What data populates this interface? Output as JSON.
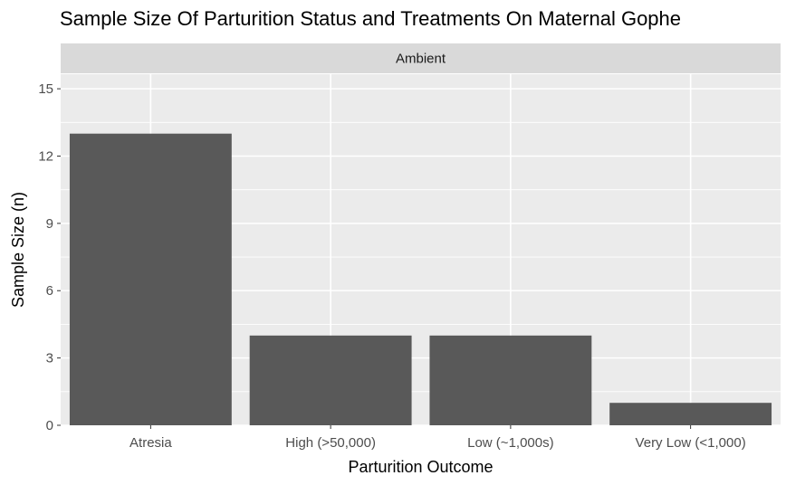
{
  "chart_data": {
    "type": "bar",
    "title": "Sample Size Of Parturition Status and Treatments On Maternal Gophe",
    "facet_label": "Ambient",
    "xlabel": "Parturition Outcome",
    "ylabel": "Sample Size (n)",
    "categories": [
      "Atresia",
      "High (>50,000)",
      "Low (~1,000s)",
      "Very Low (<1,000)"
    ],
    "values": [
      13,
      4,
      4,
      1
    ],
    "ylim": [
      0,
      15.65
    ],
    "yticks": [
      0,
      3,
      6,
      9,
      12,
      15
    ],
    "grid": true,
    "colors": {
      "bar": "#595959",
      "panel": "#ebebeb",
      "grid": "#ffffff",
      "strip": "#d9d9d9"
    }
  }
}
